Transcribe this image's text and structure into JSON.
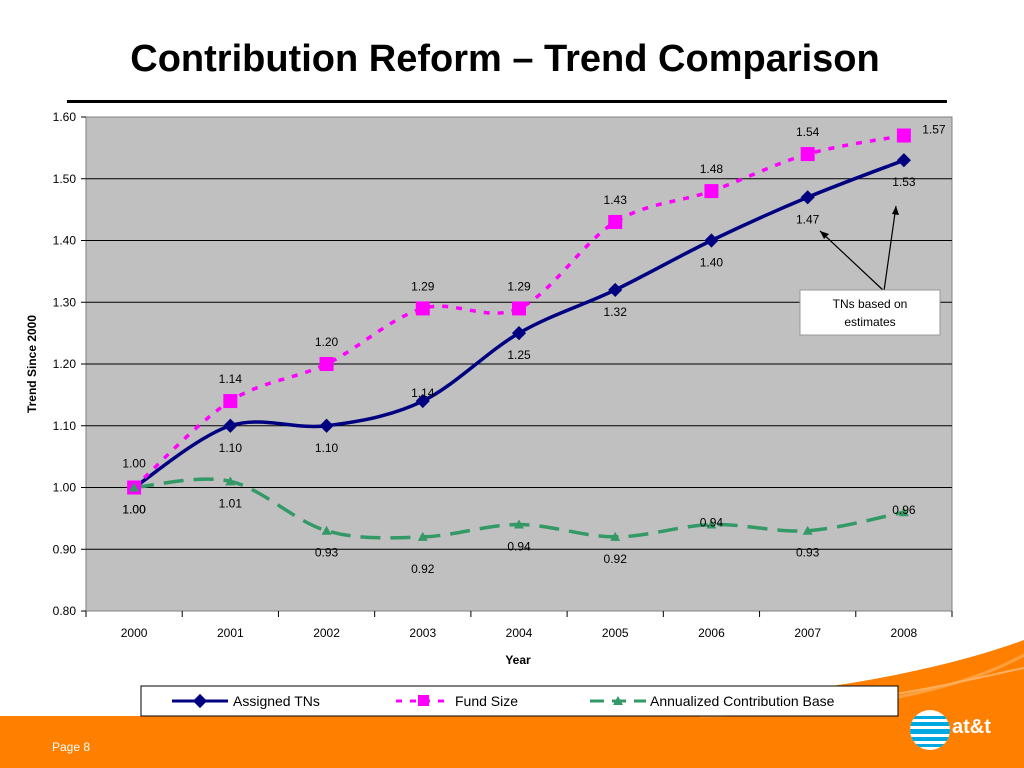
{
  "slide": {
    "title": "Contribution Reform – Trend Comparison",
    "page_label": "Page 8",
    "logo_text": "at&t"
  },
  "colors": {
    "plot_bg": "#c0c0c0",
    "assigned": "#000080",
    "fund": "#ff00ff",
    "base": "#339966",
    "footer": "#ff7f00"
  },
  "annotation": "TNs based on estimates",
  "chart_data": {
    "type": "line",
    "categories": [
      "2000",
      "2001",
      "2002",
      "2003",
      "2004",
      "2005",
      "2006",
      "2007",
      "2008"
    ],
    "xlabel": "Year",
    "ylabel": "Trend Since 2000",
    "ylim": [
      0.8,
      1.6
    ],
    "yticks": [
      "0.80",
      "0.90",
      "1.00",
      "1.10",
      "1.20",
      "1.30",
      "1.40",
      "1.50",
      "1.60"
    ],
    "grid": true,
    "legend_position": "bottom",
    "series": [
      {
        "name": "Assigned TNs",
        "values": [
          1.0,
          1.1,
          1.1,
          1.14,
          1.25,
          1.32,
          1.4,
          1.47,
          1.53
        ],
        "labels": [
          "1.00",
          "1.10",
          "1.10",
          "1.14",
          "1.25",
          "1.32",
          "1.40",
          "1.47",
          "1.53"
        ]
      },
      {
        "name": "Fund Size",
        "values": [
          1.0,
          1.14,
          1.2,
          1.29,
          1.29,
          1.43,
          1.48,
          1.54,
          1.57
        ],
        "labels": [
          "1.00",
          "1.14",
          "1.20",
          "1.29",
          "1.29",
          "1.43",
          "1.48",
          "1.54",
          "1.57"
        ]
      },
      {
        "name": "Annualized Contribution Base",
        "values": [
          1.0,
          1.01,
          0.93,
          0.92,
          0.94,
          0.92,
          0.94,
          0.93,
          0.96
        ],
        "labels": [
          "1.00",
          "1.01",
          "0.93",
          "0.92",
          "0.94",
          "0.92",
          "0.94",
          "0.93",
          "0.96"
        ]
      }
    ]
  }
}
